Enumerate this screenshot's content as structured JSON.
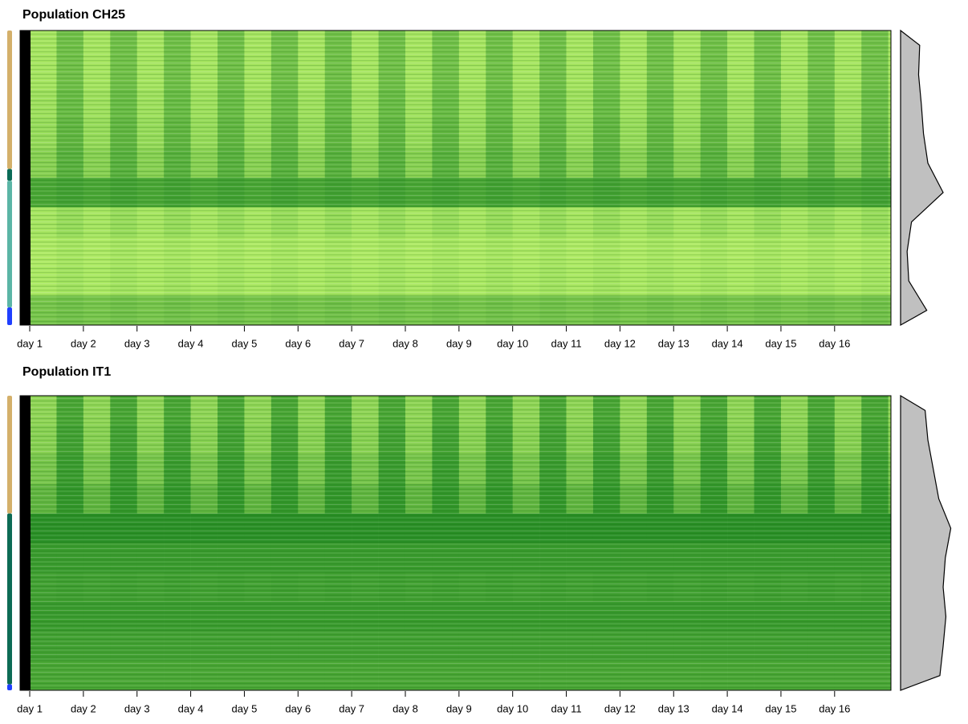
{
  "chart_data": [
    {
      "type": "heatmap",
      "title": "Population CH25",
      "xlim": [
        0.82,
        17.05
      ],
      "xticks": [
        {
          "value": 1,
          "label": "day 1"
        },
        {
          "value": 2,
          "label": "day 2"
        },
        {
          "value": 3,
          "label": "day 3"
        },
        {
          "value": 4,
          "label": "day 4"
        },
        {
          "value": 5,
          "label": "day 5"
        },
        {
          "value": 6,
          "label": "day 6"
        },
        {
          "value": 7,
          "label": "day 7"
        },
        {
          "value": 8,
          "label": "day 8"
        },
        {
          "value": 9,
          "label": "day 9"
        },
        {
          "value": 10,
          "label": "day 10"
        },
        {
          "value": 11,
          "label": "day 11"
        },
        {
          "value": 12,
          "label": "day 12"
        },
        {
          "value": 13,
          "label": "day 13"
        },
        {
          "value": 14,
          "label": "day 14"
        },
        {
          "value": 15,
          "label": "day 15"
        },
        {
          "value": 16,
          "label": "day 16"
        }
      ],
      "colormap": [
        "#bdf56b",
        "#228b22"
      ],
      "values": [
        [
          0.15,
          0.5
        ],
        [
          0.15,
          0.5
        ],
        [
          0.2,
          0.55
        ],
        [
          0.25,
          0.6
        ],
        [
          0.35,
          0.65
        ],
        [
          0.75,
          0.8
        ],
        [
          0.15,
          0.25
        ],
        [
          0.1,
          0.15
        ],
        [
          0.12,
          0.18
        ],
        [
          0.45,
          0.5
        ]
      ],
      "profile": [
        0.35,
        0.33,
        0.38,
        0.42,
        0.5,
        0.78,
        0.2,
        0.12,
        0.15,
        0.48
      ],
      "row_groups": [
        {
          "color": "#d4b06a",
          "size": 47
        },
        {
          "color": "#0b6b57",
          "size": 4
        },
        {
          "color": "#5bb5a6",
          "size": 43
        },
        {
          "color": "#1f3fff",
          "size": 6
        }
      ]
    },
    {
      "type": "heatmap",
      "title": "Population IT1",
      "xlim": [
        0.82,
        17.05
      ],
      "xticks": [
        {
          "value": 1,
          "label": "day 1"
        },
        {
          "value": 2,
          "label": "day 2"
        },
        {
          "value": 3,
          "label": "day 3"
        },
        {
          "value": 4,
          "label": "day 4"
        },
        {
          "value": 5,
          "label": "day 5"
        },
        {
          "value": 6,
          "label": "day 6"
        },
        {
          "value": 7,
          "label": "day 7"
        },
        {
          "value": 8,
          "label": "day 8"
        },
        {
          "value": 9,
          "label": "day 9"
        },
        {
          "value": 10,
          "label": "day 10"
        },
        {
          "value": 11,
          "label": "day 11"
        },
        {
          "value": 12,
          "label": "day 12"
        },
        {
          "value": 13,
          "label": "day 13"
        },
        {
          "value": 14,
          "label": "day 14"
        },
        {
          "value": 15,
          "label": "day 15"
        },
        {
          "value": 16,
          "label": "day 16"
        }
      ],
      "colormap": [
        "#bdf56b",
        "#228b22"
      ],
      "values": [
        [
          0.3,
          0.75
        ],
        [
          0.35,
          0.8
        ],
        [
          0.45,
          0.85
        ],
        [
          0.6,
          0.9
        ],
        [
          0.95,
          0.95
        ],
        [
          0.85,
          0.85
        ],
        [
          0.8,
          0.82
        ],
        [
          0.85,
          0.85
        ],
        [
          0.8,
          0.8
        ],
        [
          0.75,
          0.75
        ]
      ],
      "profile": [
        0.45,
        0.5,
        0.6,
        0.7,
        0.92,
        0.82,
        0.78,
        0.83,
        0.78,
        0.72
      ],
      "row_groups": [
        {
          "color": "#d4b06a",
          "size": 40
        },
        {
          "color": "#0d6b55",
          "size": 58
        },
        {
          "color": "#1f3fff",
          "size": 2
        }
      ]
    }
  ]
}
